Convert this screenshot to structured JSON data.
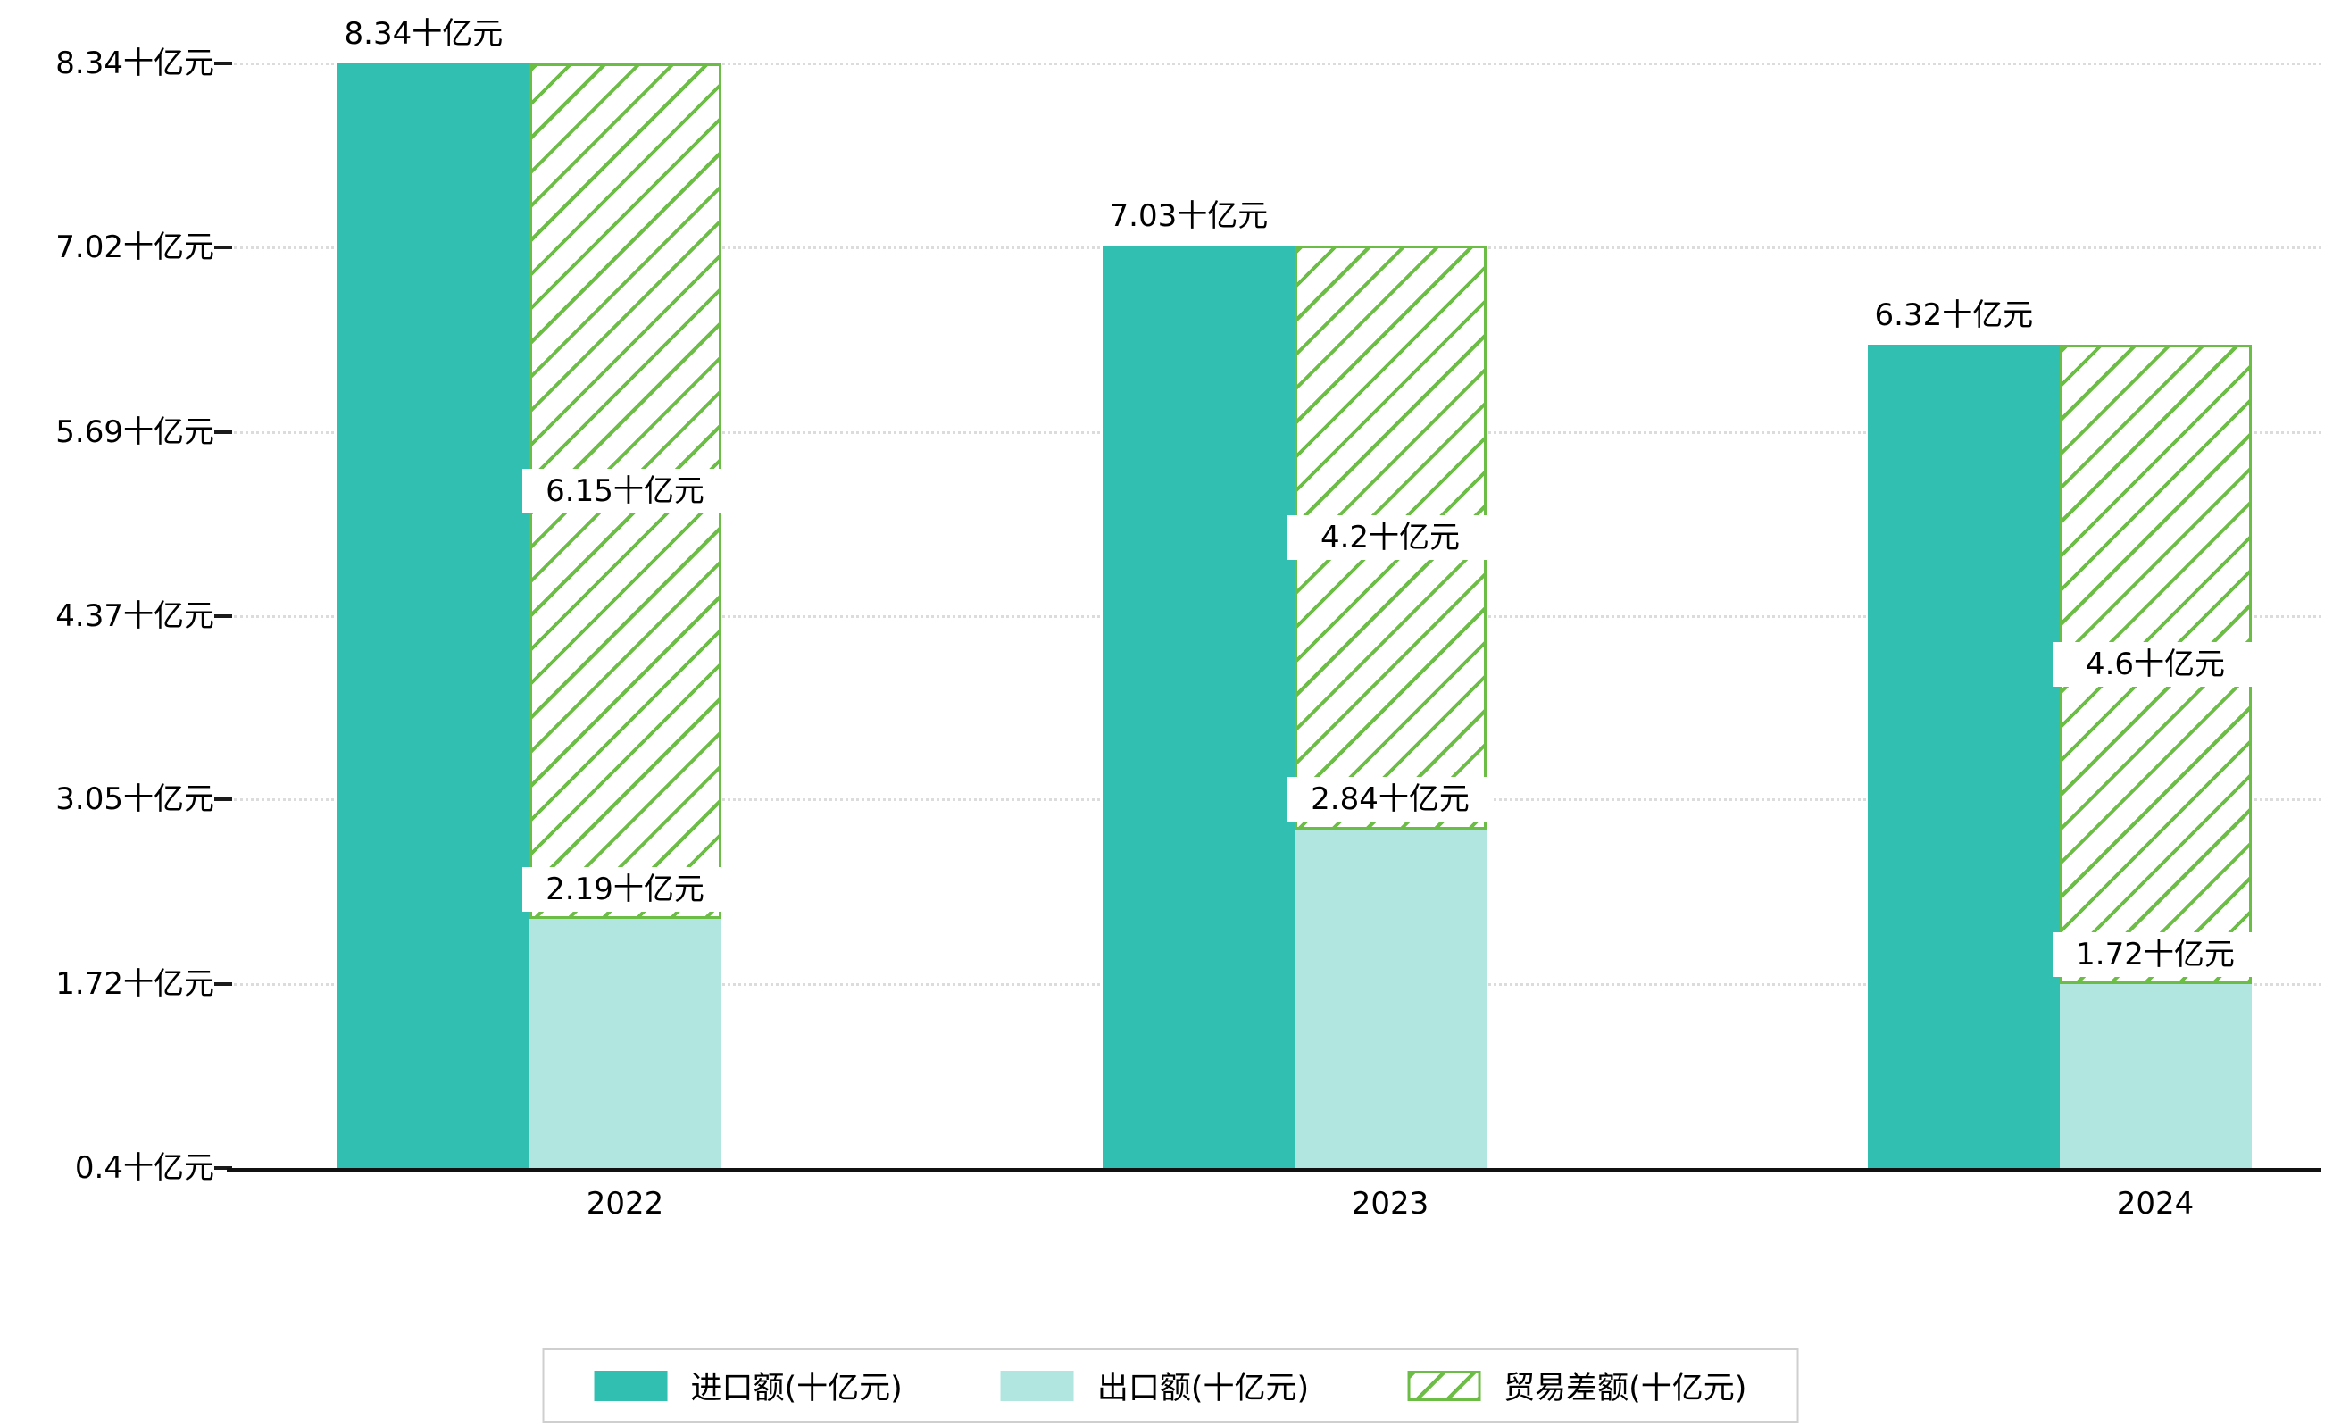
{
  "chart_data": {
    "type": "bar",
    "title": "",
    "categories": [
      "2022",
      "2023",
      "2024"
    ],
    "unit": "十亿元",
    "ylim": [
      0.4,
      8.34
    ],
    "grid": "dotted-horizontal",
    "legend_position": "bottom",
    "yticks": [
      {
        "value": 0.4,
        "label": "0.4十亿元"
      },
      {
        "value": 1.72,
        "label": "1.72十亿元"
      },
      {
        "value": 3.05,
        "label": "3.05十亿元"
      },
      {
        "value": 4.37,
        "label": "4.37十亿元"
      },
      {
        "value": 5.69,
        "label": "5.69十亿元"
      },
      {
        "value": 7.02,
        "label": "7.02十亿元"
      },
      {
        "value": 8.34,
        "label": "8.34十亿元"
      }
    ],
    "series": [
      {
        "name": "进口额(十亿元)",
        "style": "solid",
        "color": "#30bfb0",
        "values": [
          8.34,
          7.03,
          6.32
        ],
        "labels": [
          "8.34十亿元",
          "7.03十亿元",
          "6.32十亿元"
        ]
      },
      {
        "name": "出口额(十亿元)",
        "style": "solid",
        "color": "#b0e5e0",
        "values": [
          2.19,
          2.84,
          1.72
        ],
        "labels": [
          "2.19十亿元",
          "2.84十亿元",
          "1.72十亿元"
        ]
      },
      {
        "name": "贸易差额(十亿元)",
        "style": "hatched",
        "color": "#6cbd45",
        "values": [
          6.15,
          4.2,
          4.6
        ],
        "spans": [
          [
            2.19,
            8.34
          ],
          [
            2.83,
            7.03
          ],
          [
            1.72,
            6.32
          ]
        ],
        "labels": [
          "6.15十亿元",
          "4.2十亿元",
          "4.6十亿元"
        ]
      }
    ]
  }
}
